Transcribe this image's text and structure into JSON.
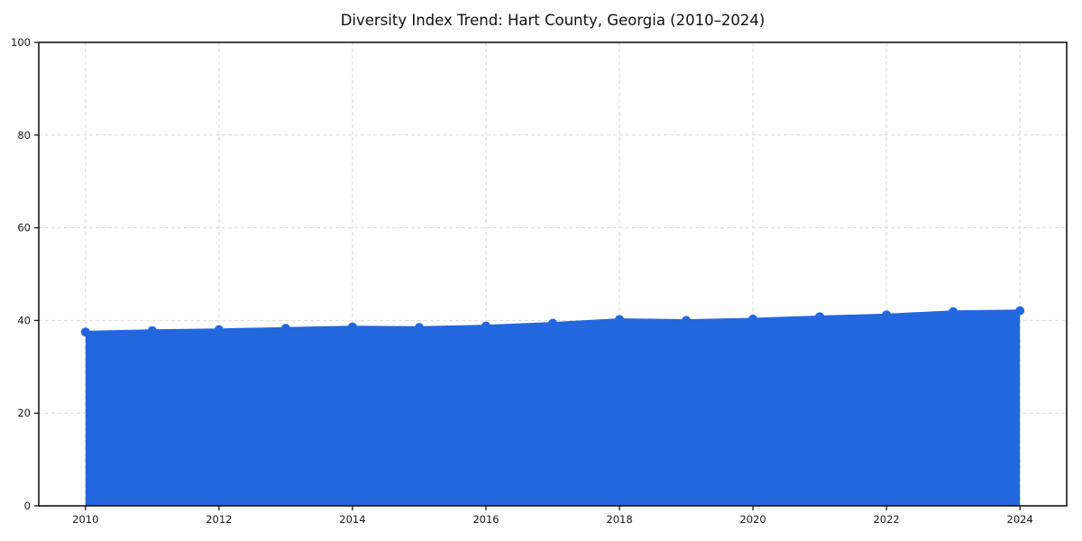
{
  "figure": {
    "background": "#ffffff"
  },
  "chart_data": {
    "type": "area",
    "title": "Diversity Index Trend: Hart County, Georgia (2010–2024)",
    "xlabel": "",
    "ylabel": "",
    "x": [
      2010,
      2011,
      2012,
      2013,
      2014,
      2015,
      2016,
      2017,
      2018,
      2019,
      2020,
      2021,
      2022,
      2023,
      2024
    ],
    "values": [
      37.5,
      37.8,
      38.0,
      38.3,
      38.6,
      38.5,
      38.8,
      39.4,
      40.2,
      40.0,
      40.3,
      40.8,
      41.2,
      41.9,
      42.1
    ],
    "series_name": "Diversity Index",
    "xlim": [
      2009.3,
      2024.7
    ],
    "ylim": [
      0,
      100
    ],
    "xticks": [
      2010,
      2012,
      2014,
      2016,
      2018,
      2020,
      2022,
      2024
    ],
    "yticks": [
      0,
      20,
      40,
      60,
      80,
      100
    ],
    "grid": true,
    "grid_style": "dashed",
    "legend": "none",
    "colors": {
      "line": "#2367df",
      "marker": "#2367df",
      "fill": "#2367df",
      "fill_opacity": 0.12,
      "grid": "#d9d9d9",
      "spine": "#161616",
      "tick_text": "#1a1a1a",
      "title_text": "#0f0f0f",
      "background": "#ffffff"
    },
    "marker_radius": 5,
    "line_width": 2.8
  }
}
